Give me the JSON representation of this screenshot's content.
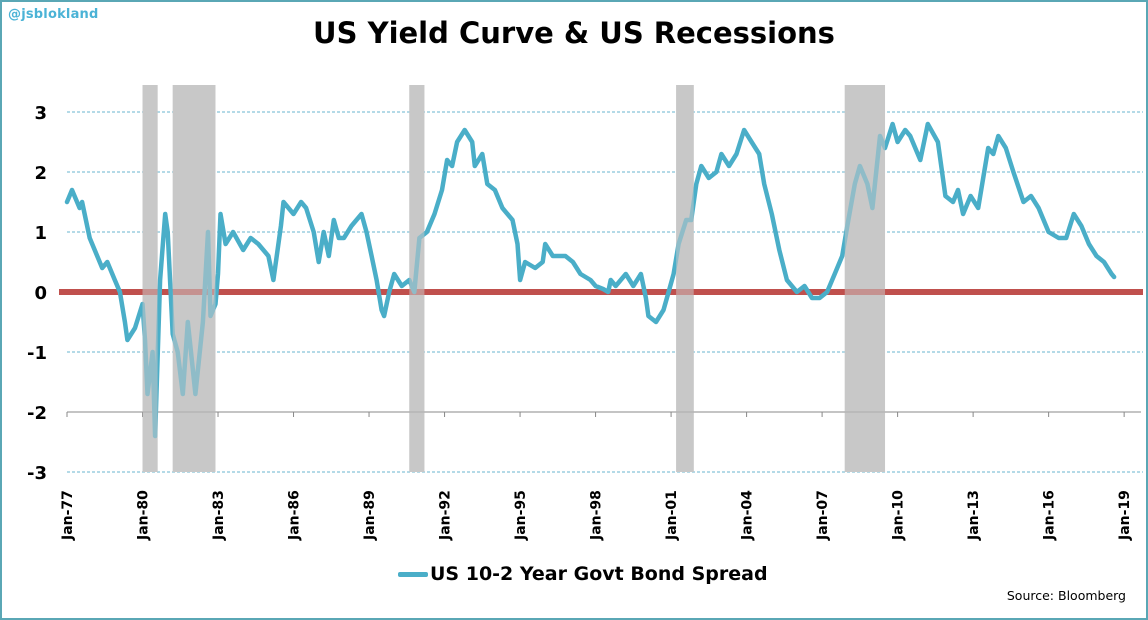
{
  "handle": "@jsblokland",
  "source": "Source:  Bloomberg",
  "colors": {
    "line": "#4aaec8",
    "zero_line": "#c0504d",
    "recession": "#c8c8c8",
    "grid": "#3a9fc0",
    "axis": "#888888",
    "border": "#5aa7b5"
  },
  "chart_data": {
    "type": "line",
    "title": "US Yield Curve & US Recessions",
    "xlabel": "",
    "ylabel": "",
    "ylim": [
      -3,
      3.5
    ],
    "xlim": [
      1977,
      2019
    ],
    "grid": true,
    "legend_position": "bottom",
    "y_ticks": [
      "3",
      "2",
      "1",
      "0",
      "-1",
      "-2",
      "-3"
    ],
    "y_tick_values": [
      3,
      2,
      1,
      0,
      -1,
      -2,
      -3
    ],
    "x_ticks": [
      "Jan-77",
      "Jan-80",
      "Jan-83",
      "Jan-86",
      "Jan-89",
      "Jan-92",
      "Jan-95",
      "Jan-98",
      "Jan-01",
      "Jan-04",
      "Jan-07",
      "Jan-10",
      "Jan-13",
      "Jan-16",
      "Jan-19"
    ],
    "x_tick_values": [
      1977,
      1980,
      1983,
      1986,
      1989,
      1992,
      1995,
      1998,
      2001,
      2004,
      2007,
      2010,
      2013,
      2016,
      2019
    ],
    "x_axis_crosses_at": -2,
    "reference_line": {
      "name": "zero line",
      "y": 0
    },
    "recessions": [
      {
        "start": 1980.0,
        "end": 1980.6
      },
      {
        "start": 1981.2,
        "end": 1982.9
      },
      {
        "start": 1990.6,
        "end": 1991.2
      },
      {
        "start": 2001.2,
        "end": 2001.9
      },
      {
        "start": 2007.9,
        "end": 2009.5
      }
    ],
    "series": [
      {
        "name": "US 10-2 Year Govt Bond Spread",
        "x": [
          1977.0,
          1977.2,
          1977.5,
          1977.6,
          1977.9,
          1978.2,
          1978.4,
          1978.6,
          1978.9,
          1979.1,
          1979.3,
          1979.4,
          1979.7,
          1980.0,
          1980.1,
          1980.2,
          1980.4,
          1980.5,
          1980.7,
          1980.9,
          1981.0,
          1981.2,
          1981.4,
          1981.6,
          1981.8,
          1982.0,
          1982.1,
          1982.4,
          1982.6,
          1982.7,
          1982.9,
          1983.0,
          1983.1,
          1983.3,
          1983.6,
          1984.0,
          1984.3,
          1984.6,
          1985.0,
          1985.2,
          1985.5,
          1985.6,
          1986.0,
          1986.3,
          1986.5,
          1986.8,
          1987.0,
          1987.2,
          1987.4,
          1987.6,
          1987.8,
          1988.0,
          1988.3,
          1988.7,
          1988.9,
          1989.1,
          1989.3,
          1989.5,
          1989.6,
          1989.8,
          1990.0,
          1990.3,
          1990.6,
          1990.8,
          1991.0,
          1991.3,
          1991.6,
          1991.9,
          1992.1,
          1992.3,
          1992.5,
          1992.8,
          1993.1,
          1993.2,
          1993.5,
          1993.7,
          1994.0,
          1994.3,
          1994.7,
          1994.9,
          1995.0,
          1995.2,
          1995.6,
          1995.9,
          1996.0,
          1996.3,
          1996.8,
          1997.1,
          1997.4,
          1997.8,
          1998.0,
          1998.3,
          1998.5,
          1998.6,
          1998.8,
          1999.2,
          1999.5,
          1999.8,
          2000.0,
          2000.1,
          2000.4,
          2000.7,
          2000.9,
          2001.1,
          2001.3,
          2001.6,
          2001.8,
          2002.0,
          2002.2,
          2002.5,
          2002.8,
          2003.0,
          2003.3,
          2003.6,
          2003.9,
          2004.2,
          2004.5,
          2004.7,
          2005.0,
          2005.3,
          2005.6,
          2006.0,
          2006.3,
          2006.6,
          2006.9,
          2007.2,
          2007.5,
          2007.8,
          2008.0,
          2008.3,
          2008.5,
          2008.8,
          2009.0,
          2009.3,
          2009.5,
          2009.8,
          2010.0,
          2010.3,
          2010.5,
          2010.9,
          2011.2,
          2011.6,
          2011.9,
          2012.2,
          2012.4,
          2012.6,
          2012.9,
          2013.2,
          2013.6,
          2013.8,
          2014.0,
          2014.3,
          2014.6,
          2015.0,
          2015.3,
          2015.6,
          2016.0,
          2016.4,
          2016.7,
          2017.0,
          2017.3,
          2017.6,
          2017.9,
          2018.2,
          2018.5,
          2018.6
        ],
        "values": [
          1.5,
          1.7,
          1.4,
          1.5,
          0.9,
          0.6,
          0.4,
          0.5,
          0.2,
          0.0,
          -0.5,
          -0.8,
          -0.6,
          -0.2,
          -0.8,
          -1.7,
          -1.0,
          -2.4,
          0.2,
          1.3,
          1.0,
          -0.7,
          -1.0,
          -1.7,
          -0.5,
          -1.3,
          -1.7,
          -0.5,
          1.0,
          -0.4,
          -0.2,
          0.3,
          1.3,
          0.8,
          1.0,
          0.7,
          0.9,
          0.8,
          0.6,
          0.2,
          1.1,
          1.5,
          1.3,
          1.5,
          1.4,
          1.0,
          0.5,
          1.0,
          0.6,
          1.2,
          0.9,
          0.9,
          1.1,
          1.3,
          1.0,
          0.6,
          0.2,
          -0.3,
          -0.4,
          0.0,
          0.3,
          0.1,
          0.2,
          0.0,
          0.9,
          1.0,
          1.3,
          1.7,
          2.2,
          2.1,
          2.5,
          2.7,
          2.5,
          2.1,
          2.3,
          1.8,
          1.7,
          1.4,
          1.2,
          0.8,
          0.2,
          0.5,
          0.4,
          0.5,
          0.8,
          0.6,
          0.6,
          0.5,
          0.3,
          0.2,
          0.1,
          0.05,
          0.0,
          0.2,
          0.1,
          0.3,
          0.1,
          0.3,
          -0.1,
          -0.4,
          -0.5,
          -0.3,
          0.0,
          0.3,
          0.8,
          1.2,
          1.2,
          1.8,
          2.1,
          1.9,
          2.0,
          2.3,
          2.1,
          2.3,
          2.7,
          2.5,
          2.3,
          1.8,
          1.3,
          0.7,
          0.2,
          0.0,
          0.1,
          -0.1,
          -0.1,
          0.0,
          0.3,
          0.6,
          1.1,
          1.8,
          2.1,
          1.8,
          1.4,
          2.6,
          2.4,
          2.8,
          2.5,
          2.7,
          2.6,
          2.2,
          2.8,
          2.5,
          1.6,
          1.5,
          1.7,
          1.3,
          1.6,
          1.4,
          2.4,
          2.3,
          2.6,
          2.4,
          2.0,
          1.5,
          1.6,
          1.4,
          1.0,
          0.9,
          0.9,
          1.3,
          1.1,
          0.8,
          0.6,
          0.5,
          0.3,
          0.25
        ]
      }
    ]
  }
}
